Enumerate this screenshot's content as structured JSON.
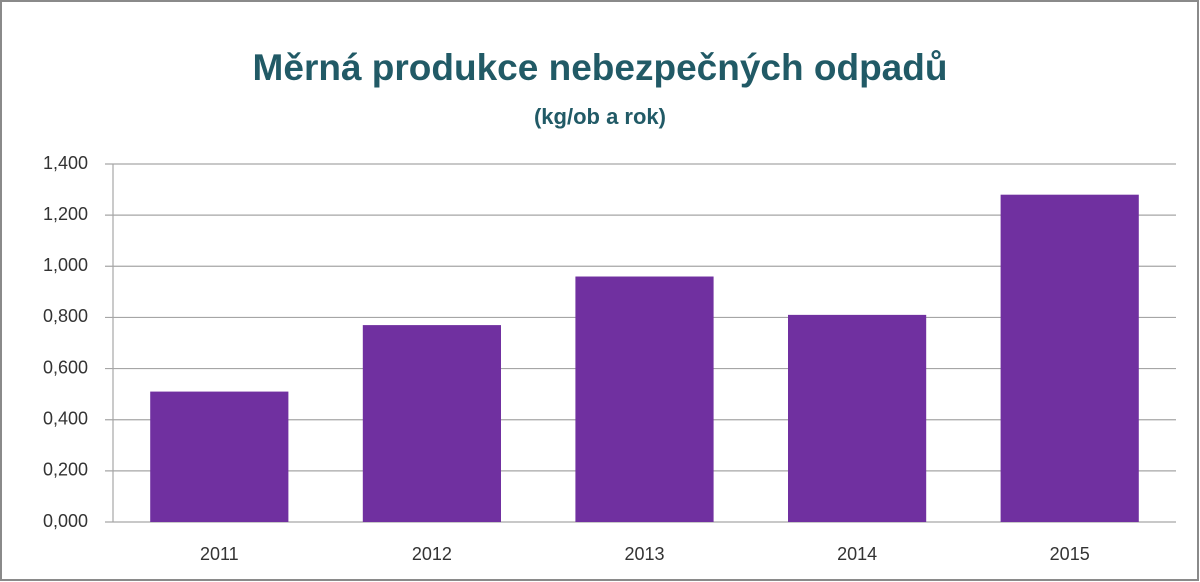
{
  "chart_data": {
    "type": "bar",
    "title": "Měrná produkce nebezpečných odpadů",
    "subtitle": "(kg/ob a rok)",
    "categories": [
      "2011",
      "2012",
      "2013",
      "2014",
      "2015"
    ],
    "values": [
      0.51,
      0.77,
      0.96,
      0.81,
      1.28
    ],
    "color": "#7030a0",
    "ylim": [
      0,
      1.4
    ],
    "yticks": [
      {
        "value": 0,
        "label": "0,000"
      },
      {
        "value": 0.2,
        "label": "0,200"
      },
      {
        "value": 0.4,
        "label": "0,400"
      },
      {
        "value": 0.6,
        "label": "0,600"
      },
      {
        "value": 0.8,
        "label": "0,800"
      },
      {
        "value": 1.0,
        "label": "1,000"
      },
      {
        "value": 1.2,
        "label": "1,200"
      },
      {
        "value": 1.4,
        "label": "1,400"
      }
    ],
    "grid": true
  }
}
